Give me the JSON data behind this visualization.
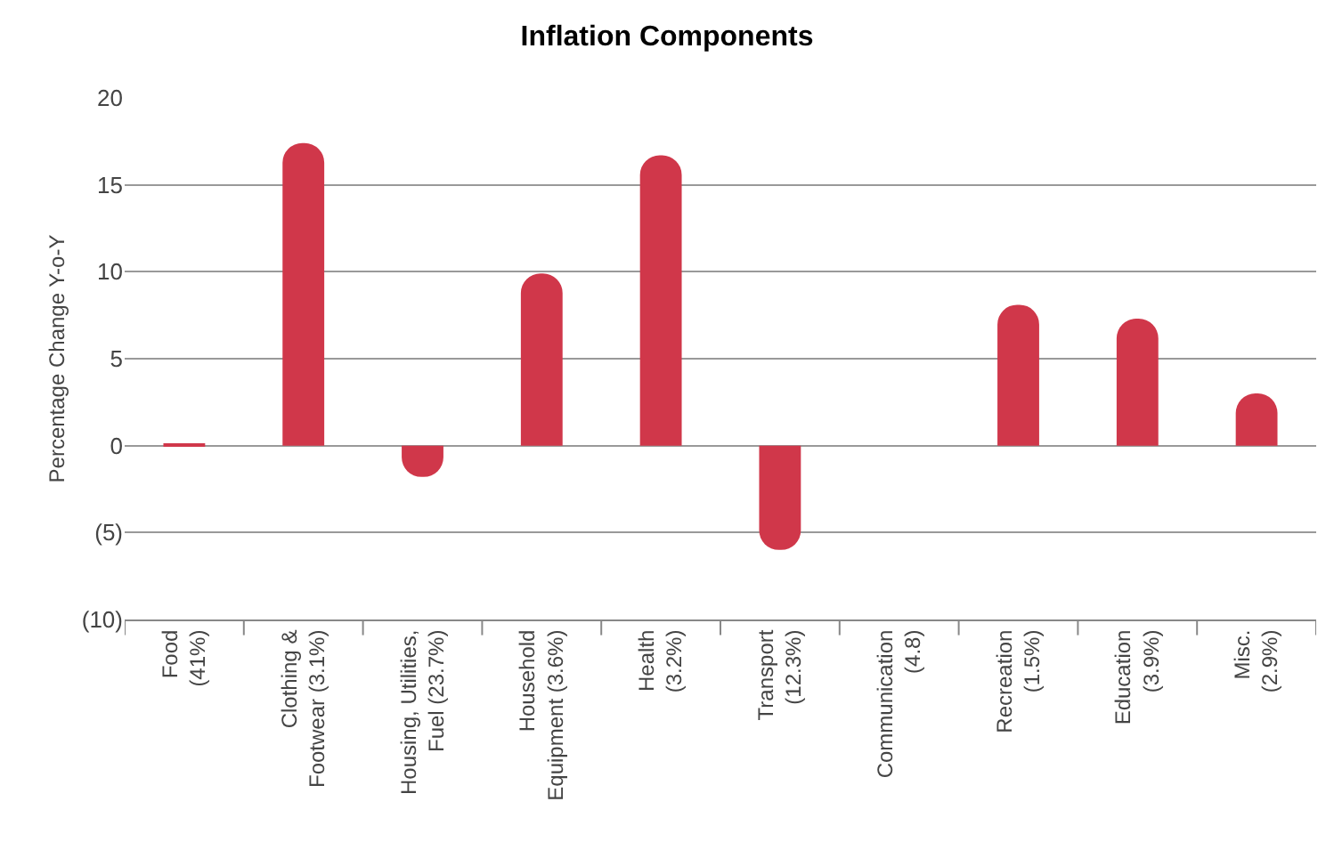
{
  "chart_data": {
    "type": "bar",
    "title": "Inflation Components",
    "ylabel": "Percentage Change Y-o-Y",
    "categories": [
      "Food\n(41%)",
      "Clothing &\nFootwear (3.1%)",
      "Housing, Utilities,\nFuel (23.7%)",
      "Household\nEquipment (3.6%)",
      "Health\n(3.2%)",
      "Transport\n(12.3%)",
      "Communication\n(4.8)",
      "Recreation\n(1.5%)",
      "Education\n(3.9%)",
      "Misc.\n(2.9%)"
    ],
    "values": [
      0.1,
      17.4,
      -1.8,
      9.9,
      16.7,
      -6.0,
      0,
      8.1,
      7.3,
      3.0
    ],
    "color": "#d0374a",
    "ylim": [
      -10,
      20
    ],
    "yticks": [
      {
        "value": -10,
        "label": "(10)"
      },
      {
        "value": -5,
        "label": "(5)"
      },
      0,
      5,
      10,
      15,
      20
    ],
    "grid": "y"
  }
}
